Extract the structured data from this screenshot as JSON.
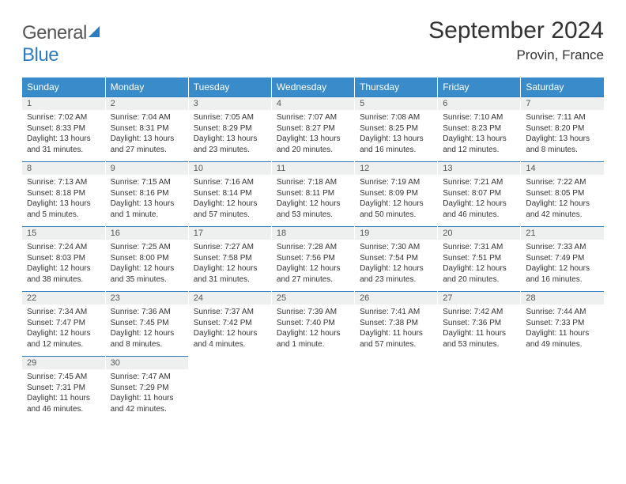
{
  "logo": {
    "word1": "General",
    "word2": "Blue"
  },
  "title": "September 2024",
  "location": "Provin, France",
  "weekday_header_bg": "#3a8bc9",
  "weekday_header_fg": "#ffffff",
  "daynum_bg": "#eef0f0",
  "row_border_color": "#2d7cc0",
  "text_color": "#333333",
  "font_family": "Arial",
  "weekdays": [
    "Sunday",
    "Monday",
    "Tuesday",
    "Wednesday",
    "Thursday",
    "Friday",
    "Saturday"
  ],
  "days": [
    {
      "n": "1",
      "sunrise": "7:02 AM",
      "sunset": "8:33 PM",
      "daylight": "13 hours and 31 minutes."
    },
    {
      "n": "2",
      "sunrise": "7:04 AM",
      "sunset": "8:31 PM",
      "daylight": "13 hours and 27 minutes."
    },
    {
      "n": "3",
      "sunrise": "7:05 AM",
      "sunset": "8:29 PM",
      "daylight": "13 hours and 23 minutes."
    },
    {
      "n": "4",
      "sunrise": "7:07 AM",
      "sunset": "8:27 PM",
      "daylight": "13 hours and 20 minutes."
    },
    {
      "n": "5",
      "sunrise": "7:08 AM",
      "sunset": "8:25 PM",
      "daylight": "13 hours and 16 minutes."
    },
    {
      "n": "6",
      "sunrise": "7:10 AM",
      "sunset": "8:23 PM",
      "daylight": "13 hours and 12 minutes."
    },
    {
      "n": "7",
      "sunrise": "7:11 AM",
      "sunset": "8:20 PM",
      "daylight": "13 hours and 8 minutes."
    },
    {
      "n": "8",
      "sunrise": "7:13 AM",
      "sunset": "8:18 PM",
      "daylight": "13 hours and 5 minutes."
    },
    {
      "n": "9",
      "sunrise": "7:15 AM",
      "sunset": "8:16 PM",
      "daylight": "13 hours and 1 minute."
    },
    {
      "n": "10",
      "sunrise": "7:16 AM",
      "sunset": "8:14 PM",
      "daylight": "12 hours and 57 minutes."
    },
    {
      "n": "11",
      "sunrise": "7:18 AM",
      "sunset": "8:11 PM",
      "daylight": "12 hours and 53 minutes."
    },
    {
      "n": "12",
      "sunrise": "7:19 AM",
      "sunset": "8:09 PM",
      "daylight": "12 hours and 50 minutes."
    },
    {
      "n": "13",
      "sunrise": "7:21 AM",
      "sunset": "8:07 PM",
      "daylight": "12 hours and 46 minutes."
    },
    {
      "n": "14",
      "sunrise": "7:22 AM",
      "sunset": "8:05 PM",
      "daylight": "12 hours and 42 minutes."
    },
    {
      "n": "15",
      "sunrise": "7:24 AM",
      "sunset": "8:03 PM",
      "daylight": "12 hours and 38 minutes."
    },
    {
      "n": "16",
      "sunrise": "7:25 AM",
      "sunset": "8:00 PM",
      "daylight": "12 hours and 35 minutes."
    },
    {
      "n": "17",
      "sunrise": "7:27 AM",
      "sunset": "7:58 PM",
      "daylight": "12 hours and 31 minutes."
    },
    {
      "n": "18",
      "sunrise": "7:28 AM",
      "sunset": "7:56 PM",
      "daylight": "12 hours and 27 minutes."
    },
    {
      "n": "19",
      "sunrise": "7:30 AM",
      "sunset": "7:54 PM",
      "daylight": "12 hours and 23 minutes."
    },
    {
      "n": "20",
      "sunrise": "7:31 AM",
      "sunset": "7:51 PM",
      "daylight": "12 hours and 20 minutes."
    },
    {
      "n": "21",
      "sunrise": "7:33 AM",
      "sunset": "7:49 PM",
      "daylight": "12 hours and 16 minutes."
    },
    {
      "n": "22",
      "sunrise": "7:34 AM",
      "sunset": "7:47 PM",
      "daylight": "12 hours and 12 minutes."
    },
    {
      "n": "23",
      "sunrise": "7:36 AM",
      "sunset": "7:45 PM",
      "daylight": "12 hours and 8 minutes."
    },
    {
      "n": "24",
      "sunrise": "7:37 AM",
      "sunset": "7:42 PM",
      "daylight": "12 hours and 4 minutes."
    },
    {
      "n": "25",
      "sunrise": "7:39 AM",
      "sunset": "7:40 PM",
      "daylight": "12 hours and 1 minute."
    },
    {
      "n": "26",
      "sunrise": "7:41 AM",
      "sunset": "7:38 PM",
      "daylight": "11 hours and 57 minutes."
    },
    {
      "n": "27",
      "sunrise": "7:42 AM",
      "sunset": "7:36 PM",
      "daylight": "11 hours and 53 minutes."
    },
    {
      "n": "28",
      "sunrise": "7:44 AM",
      "sunset": "7:33 PM",
      "daylight": "11 hours and 49 minutes."
    },
    {
      "n": "29",
      "sunrise": "7:45 AM",
      "sunset": "7:31 PM",
      "daylight": "11 hours and 46 minutes."
    },
    {
      "n": "30",
      "sunrise": "7:47 AM",
      "sunset": "7:29 PM",
      "daylight": "11 hours and 42 minutes."
    }
  ],
  "labels": {
    "sunrise": "Sunrise:",
    "sunset": "Sunset:",
    "daylight": "Daylight:"
  },
  "grid": {
    "start_weekday": 0,
    "total_cells": 35
  }
}
